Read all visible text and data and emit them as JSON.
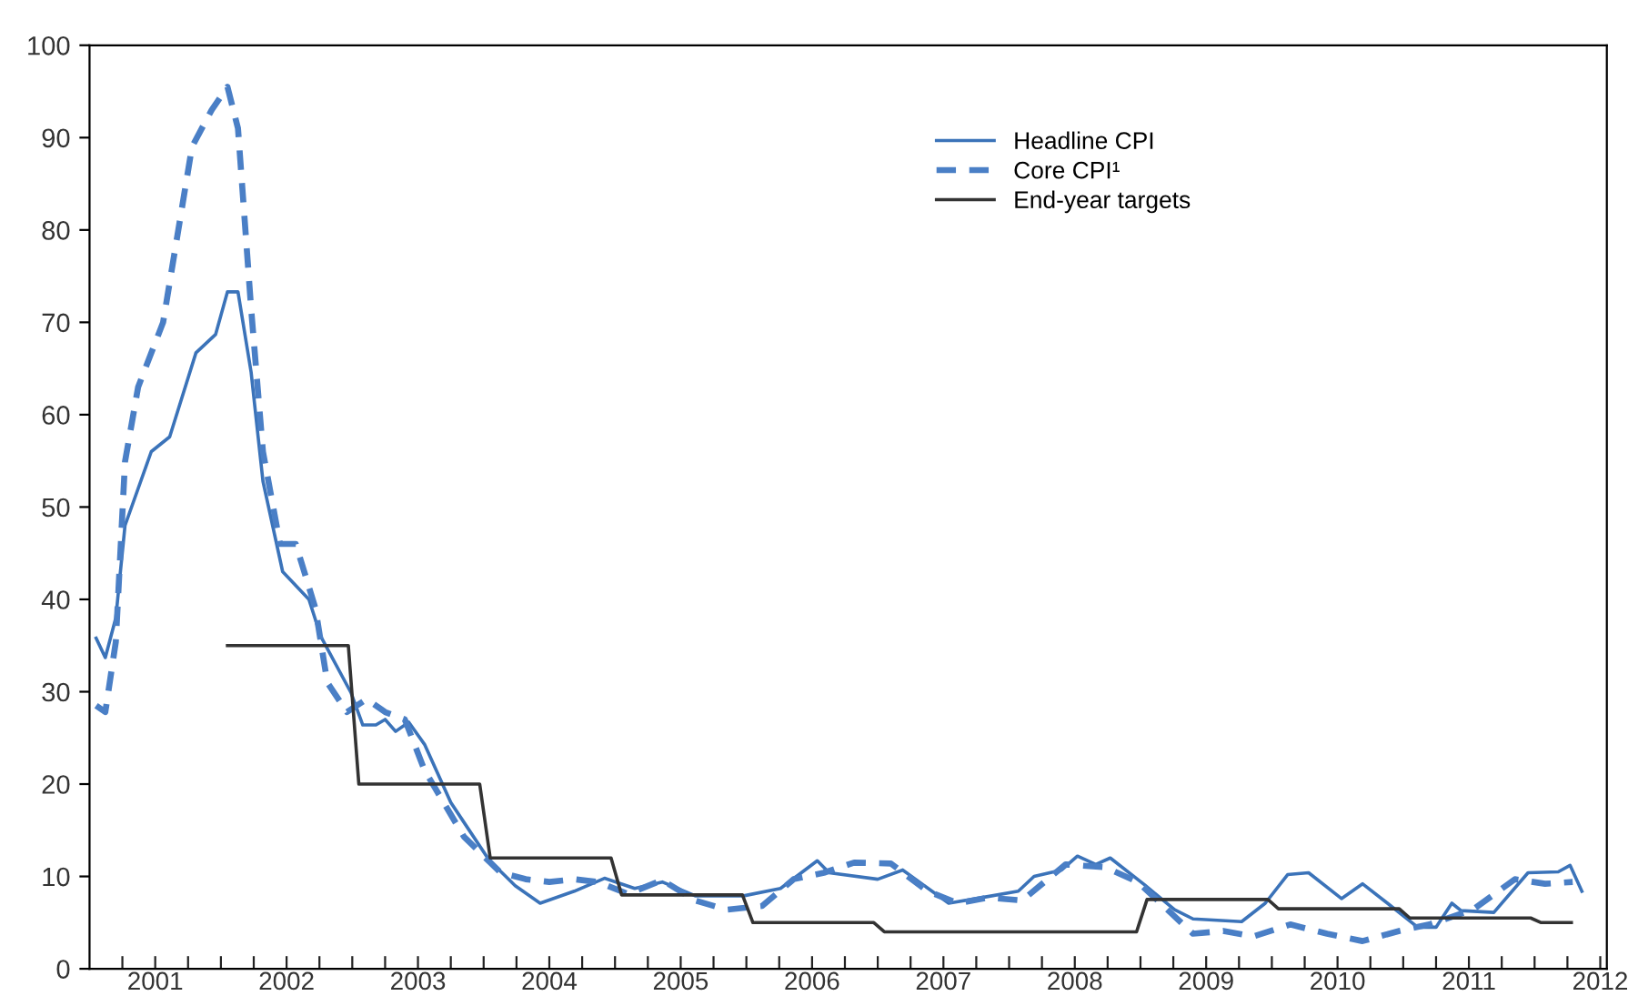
{
  "chart_data": {
    "type": "line",
    "xlim": [
      2001,
      2012.55
    ],
    "xticks": [
      {
        "value": 2001.25,
        "label": null
      },
      {
        "value": 2001.5,
        "label": "2001"
      },
      {
        "value": 2001.75,
        "label": null
      },
      {
        "value": 2002,
        "label": null
      },
      {
        "value": 2002.25,
        "label": null
      },
      {
        "value": 2002.5,
        "label": "2002"
      },
      {
        "value": 2002.75,
        "label": null
      },
      {
        "value": 2003,
        "label": null
      },
      {
        "value": 2003.25,
        "label": null
      },
      {
        "value": 2003.5,
        "label": "2003"
      },
      {
        "value": 2003.75,
        "label": null
      },
      {
        "value": 2004,
        "label": null
      },
      {
        "value": 2004.25,
        "label": null
      },
      {
        "value": 2004.5,
        "label": "2004"
      },
      {
        "value": 2004.75,
        "label": null
      },
      {
        "value": 2005,
        "label": null
      },
      {
        "value": 2005.25,
        "label": null
      },
      {
        "value": 2005.5,
        "label": "2005"
      },
      {
        "value": 2005.75,
        "label": null
      },
      {
        "value": 2006,
        "label": null
      },
      {
        "value": 2006.25,
        "label": null
      },
      {
        "value": 2006.5,
        "label": "2006"
      },
      {
        "value": 2006.75,
        "label": null
      },
      {
        "value": 2007,
        "label": null
      },
      {
        "value": 2007.25,
        "label": null
      },
      {
        "value": 2007.5,
        "label": "2007"
      },
      {
        "value": 2007.75,
        "label": null
      },
      {
        "value": 2008,
        "label": null
      },
      {
        "value": 2008.25,
        "label": null
      },
      {
        "value": 2008.5,
        "label": "2008"
      },
      {
        "value": 2008.75,
        "label": null
      },
      {
        "value": 2009,
        "label": null
      },
      {
        "value": 2009.25,
        "label": null
      },
      {
        "value": 2009.5,
        "label": "2009"
      },
      {
        "value": 2009.75,
        "label": null
      },
      {
        "value": 2010,
        "label": null
      },
      {
        "value": 2010.25,
        "label": null
      },
      {
        "value": 2010.5,
        "label": "2010"
      },
      {
        "value": 2010.75,
        "label": null
      },
      {
        "value": 2011,
        "label": null
      },
      {
        "value": 2011.25,
        "label": null
      },
      {
        "value": 2011.5,
        "label": "2011"
      },
      {
        "value": 2011.75,
        "label": null
      },
      {
        "value": 2012,
        "label": null
      },
      {
        "value": 2012.25,
        "label": null
      },
      {
        "value": 2012.5,
        "label": "2012"
      }
    ],
    "ylim": [
      0,
      100
    ],
    "yticks": [
      0,
      10,
      20,
      30,
      40,
      50,
      60,
      70,
      80,
      90,
      100
    ],
    "grid": false,
    "legend": "top right",
    "series": [
      {
        "name": "Headline CPI",
        "color": "#3b73b9",
        "line_style": "solid",
        "x": [
          2001.05,
          2001.12,
          2001.2,
          2001.27,
          2001.47,
          2001.61,
          2001.81,
          2001.96,
          2002.05,
          2002.13,
          2002.23,
          2002.32,
          2002.47,
          2002.67,
          2002.76,
          2002.99,
          2003.08,
          2003.18,
          2003.25,
          2003.33,
          2003.43,
          2003.55,
          2003.75,
          2004.04,
          2004.24,
          2004.43,
          2004.69,
          2004.92,
          2005.15,
          2005.36,
          2005.61,
          2005.98,
          2006.26,
          2006.54,
          2006.63,
          2007.0,
          2007.19,
          2007.54,
          2007.79,
          2008.07,
          2008.19,
          2008.4,
          2008.52,
          2008.66,
          2008.77,
          2009.03,
          2009.26,
          2009.4,
          2009.77,
          2009.95,
          2010.12,
          2010.28,
          2010.53,
          2010.69,
          2010.88,
          2011.11,
          2011.25,
          2011.37,
          2011.44,
          2011.69,
          2011.95,
          2012.18,
          2012.27,
          2012.36
        ],
        "values": [
          35.8,
          33.7,
          38,
          48,
          56,
          57.6,
          66.7,
          68.7,
          73.3,
          73.3,
          64.6,
          52.8,
          43,
          40,
          36,
          29.9,
          26.4,
          26.4,
          27,
          25.7,
          26.7,
          24.3,
          18,
          11.8,
          9,
          7.1,
          8.4,
          9.8,
          8.7,
          9.4,
          7.9,
          7.9,
          8.7,
          11.7,
          10.4,
          9.7,
          10.7,
          7.1,
          7.7,
          8.4,
          10.0,
          10.7,
          12.2,
          11.3,
          12.0,
          9.1,
          6.4,
          5.4,
          5.1,
          7.1,
          10.2,
          10.4,
          7.6,
          9.2,
          7.1,
          4.5,
          4.5,
          7.1,
          6.3,
          6.1,
          10.4,
          10.5,
          11.2,
          8.4
        ]
      },
      {
        "name": "Core CPI¹",
        "color": "#4a7fc6",
        "line_style": "dashed",
        "x": [
          2001.05,
          2001.12,
          2001.2,
          2001.27,
          2001.37,
          2001.56,
          2001.78,
          2001.93,
          2002.05,
          2002.13,
          2002.23,
          2002.32,
          2002.45,
          2002.57,
          2002.72,
          2002.81,
          2002.96,
          2003.11,
          2003.25,
          2003.4,
          2003.55,
          2003.75,
          2003.85,
          2004.13,
          2004.32,
          2004.5,
          2004.69,
          2004.87,
          2005.1,
          2005.36,
          2005.61,
          2005.85,
          2006.12,
          2006.36,
          2006.59,
          2006.82,
          2007.1,
          2007.38,
          2007.61,
          2007.84,
          2008.1,
          2008.43,
          2008.73,
          2008.98,
          2009.4,
          2009.63,
          2009.86,
          2010.14,
          2010.42,
          2010.69,
          2010.97,
          2011.2,
          2011.53,
          2011.85,
          2012.08,
          2012.29
        ],
        "values": [
          28.5,
          27.8,
          35.4,
          54.9,
          63,
          70,
          89,
          93,
          95.5,
          91,
          71.5,
          56,
          46,
          46,
          39,
          31,
          27.8,
          29.2,
          27.8,
          27,
          21.5,
          16.7,
          14.3,
          10.4,
          9.7,
          9.4,
          9.7,
          9.4,
          8.1,
          9.6,
          7.4,
          6.4,
          6.8,
          9.7,
          10.4,
          11.5,
          11.4,
          8.4,
          7.1,
          7.7,
          7.4,
          11.3,
          11.0,
          9.4,
          3.8,
          4.1,
          3.5,
          4.8,
          3.8,
          3.0,
          4.1,
          4.8,
          6.4,
          9.7,
          9.2,
          9.4
        ]
      },
      {
        "name": "End-year targets",
        "color": "#333333",
        "line_style": "solid",
        "x": [
          2002.05,
          2002.97,
          2003.05,
          2003.97,
          2004.05,
          2004.97,
          2005.05,
          2005.97,
          2006.05,
          2006.97,
          2007.05,
          2008.97,
          2009.05,
          2009.97,
          2010.05,
          2010.97,
          2011.05,
          2011.97,
          2012.05,
          2012.28
        ],
        "values": [
          35,
          35,
          20,
          20,
          12,
          12,
          8,
          8,
          5,
          5,
          4,
          4,
          7.5,
          7.5,
          6.5,
          6.5,
          5.5,
          5.5,
          5,
          5
        ]
      }
    ]
  }
}
